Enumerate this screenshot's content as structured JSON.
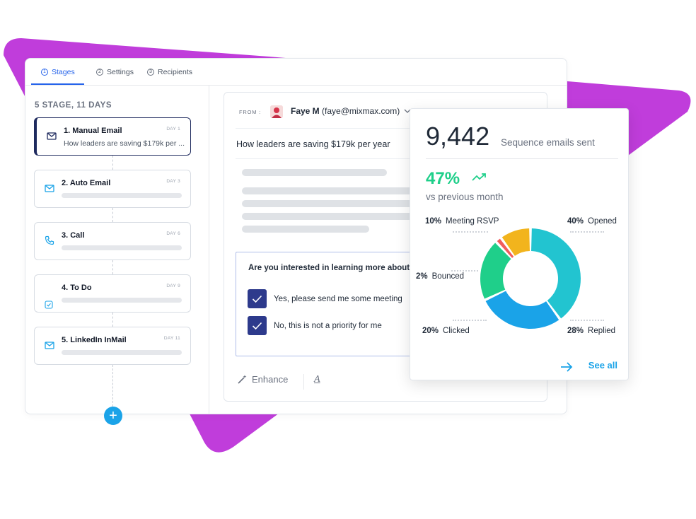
{
  "tabs": [
    {
      "num": "1",
      "label": "Stages"
    },
    {
      "num": "2",
      "label": "Settings"
    },
    {
      "num": "3",
      "label": "Recipients"
    }
  ],
  "stage_summary": "5 STAGE, 11 DAYS",
  "stages": [
    {
      "title": "1. Manual Email",
      "day": "DAY 1",
      "subtitle": "How leaders are saving $179k per ...",
      "icon": "mail-icon"
    },
    {
      "title": "2. Auto Email",
      "day": "DAY 3",
      "icon": "mail-icon"
    },
    {
      "title": "3. Call",
      "day": "DAY 6",
      "icon": "phone-icon"
    },
    {
      "title": "4. To Do",
      "day": "DAY 9",
      "icon": "checkbox-icon"
    },
    {
      "title": "5. LinkedIn InMail",
      "day": "DAY 11",
      "icon": "mail-icon"
    }
  ],
  "add_button": "+",
  "editor": {
    "from_label": "FROM :",
    "from_name": "Faye M",
    "from_email": "(faye@mixmax.com)",
    "subject": "How leaders are saving $179k per year",
    "question": "Are you interested in learning more about h",
    "options": [
      "Yes, please send me some meeting",
      "No, this is not a priority for me"
    ],
    "enhance_label": "Enhance",
    "font_tool": "A"
  },
  "stats": {
    "count": "9,442",
    "count_label": "Sequence emails sent",
    "growth": "47%",
    "growth_label": "vs previous month",
    "see_all": "See all",
    "legend": [
      {
        "pct": "10%",
        "label": "Meeting RSVP"
      },
      {
        "pct": "40%",
        "label": "Opened"
      },
      {
        "pct": "2%",
        "label": "Bounced"
      },
      {
        "pct": "20%",
        "label": "Clicked"
      },
      {
        "pct": "28%",
        "label": "Replied"
      }
    ]
  },
  "chart_data": {
    "type": "pie",
    "categories": [
      "Opened",
      "Replied",
      "Clicked",
      "Bounced",
      "Meeting RSVP"
    ],
    "values": [
      40,
      28,
      20,
      2,
      10
    ],
    "colors": [
      "#22c4d0",
      "#1aa3e8",
      "#1fcf8a",
      "#f25c5c",
      "#f2b41d"
    ]
  },
  "colors": {
    "accent": "#2563eb",
    "brand_purple": "#c03ddb",
    "add_button": "#1aa3e8",
    "checkbox": "#2d3a8c",
    "growth": "#1fcf8a"
  }
}
